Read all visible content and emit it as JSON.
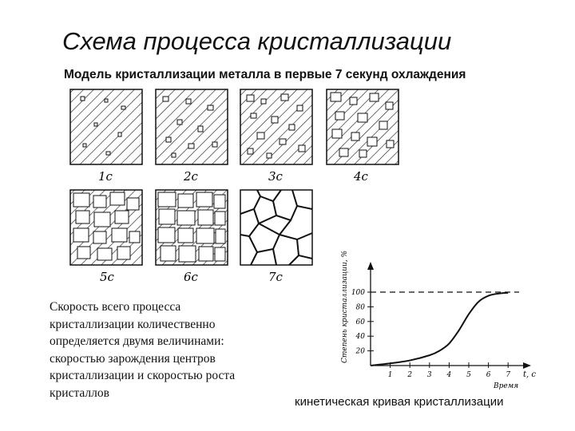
{
  "title": "Схема процесса кристаллизации",
  "subtitle": "Модель кристаллизации металла в первые 7 секунд охлаждения",
  "panel_labels": [
    "1с",
    "2с",
    "3с",
    "4с",
    "5с",
    "6с",
    "7с"
  ],
  "description_lines": [
    "Скорость всего процесса",
    "кристаллизации количественно",
    "определяется двумя величинами:",
    "скоростью зарождения центров",
    "кристаллизации и скоростью роста",
    "кристаллов"
  ],
  "curve_caption": "кинетическая кривая кристаллизации",
  "chart_data": {
    "type": "line",
    "ylabel": "Степень кристаллизации, %",
    "xlabel": "Время",
    "x_axis_symbol": "t, с",
    "x_ticks": [
      "1",
      "2",
      "3",
      "4",
      "5",
      "6",
      "7"
    ],
    "y_ticks": [
      "20",
      "40",
      "60",
      "80",
      "100"
    ],
    "xlim": [
      0,
      8
    ],
    "ylim": [
      0,
      120
    ],
    "reference_line_y": 100,
    "series": [
      {
        "x": [
          0,
          1,
          2,
          3,
          3.5,
          4,
          4.5,
          5,
          5.5,
          6,
          6.5,
          7
        ],
        "values": [
          0,
          3,
          7,
          14,
          20,
          30,
          48,
          70,
          87,
          95,
          98,
          99
        ]
      }
    ]
  }
}
